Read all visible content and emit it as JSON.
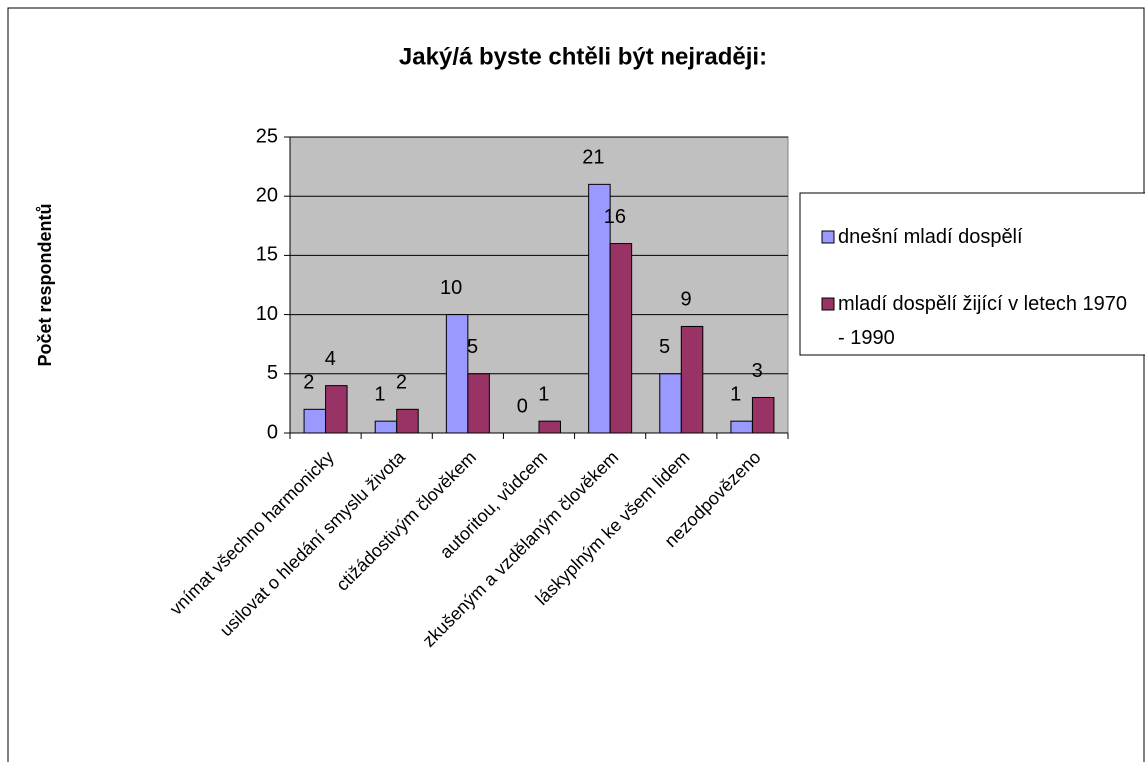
{
  "chart_data": {
    "type": "bar",
    "title": "Jaký/á byste chtěli být nejraději:",
    "y_label": "Počet respondentů",
    "categories": [
      "vnímat všechno harmonicky",
      "usilovat o hledání smyslu života",
      "ctižádostivým člověkem",
      "autoritou, vůdcem",
      "zkušeným a vzdělaným člověkem",
      "láskyplným ke všem lidem",
      "nezodpovězeno"
    ],
    "series": [
      {
        "name": "dnešní mladí dospělí",
        "color": "#9999ff",
        "values": [
          2,
          1,
          10,
          0,
          21,
          5,
          1
        ]
      },
      {
        "name": "mladí dospělí žijící v letech 1970 - 1990",
        "color": "#993366",
        "values": [
          4,
          2,
          5,
          1,
          16,
          9,
          3
        ]
      }
    ],
    "ylim": [
      0,
      25
    ],
    "yticks": [
      0,
      5,
      10,
      15,
      20,
      25
    ],
    "grid": true,
    "legend": "right"
  }
}
